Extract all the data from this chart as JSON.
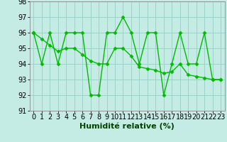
{
  "xlabel": "Humidité relative (%)",
  "background_color": "#c5ece4",
  "grid_color": "#9dd4c8",
  "line_color": "#00bb00",
  "hours": [
    0,
    1,
    2,
    3,
    4,
    5,
    6,
    7,
    8,
    9,
    10,
    11,
    12,
    13,
    14,
    15,
    16,
    17,
    18,
    19,
    20,
    21,
    22,
    23
  ],
  "values1": [
    96,
    94,
    96,
    94,
    96,
    96,
    96,
    92,
    92,
    96,
    96,
    97,
    96,
    94,
    96,
    96,
    92,
    94,
    96,
    94,
    94,
    96,
    93,
    93
  ],
  "values2": [
    96.0,
    95.6,
    95.2,
    94.8,
    95.0,
    95.0,
    94.6,
    94.2,
    94.0,
    94.0,
    95.0,
    95.0,
    94.5,
    93.8,
    93.7,
    93.6,
    93.4,
    93.5,
    94.0,
    93.3,
    93.2,
    93.1,
    93.0,
    93.0
  ],
  "ylim": [
    91,
    98
  ],
  "yticks": [
    91,
    92,
    93,
    94,
    95,
    96,
    97,
    98
  ],
  "xlim": [
    -0.5,
    23.5
  ],
  "marker": "D",
  "marker_size": 2.5,
  "line_width": 1.0,
  "tick_fontsize": 7,
  "xlabel_fontsize": 8
}
